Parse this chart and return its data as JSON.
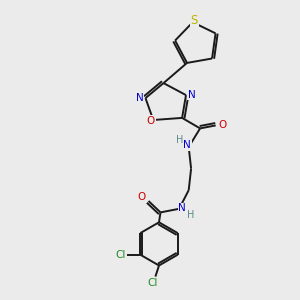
{
  "background_color": "#ebebeb",
  "bond_color": "#1a1a1a",
  "atom_colors": {
    "N": "#0000cc",
    "O": "#cc0000",
    "S": "#b8b800",
    "Cl": "#228B22",
    "H_gray": "#5a8a8a"
  },
  "figsize": [
    3.0,
    3.0
  ],
  "dpi": 100,
  "xlim": [
    0,
    10
  ],
  "ylim": [
    0,
    10
  ]
}
